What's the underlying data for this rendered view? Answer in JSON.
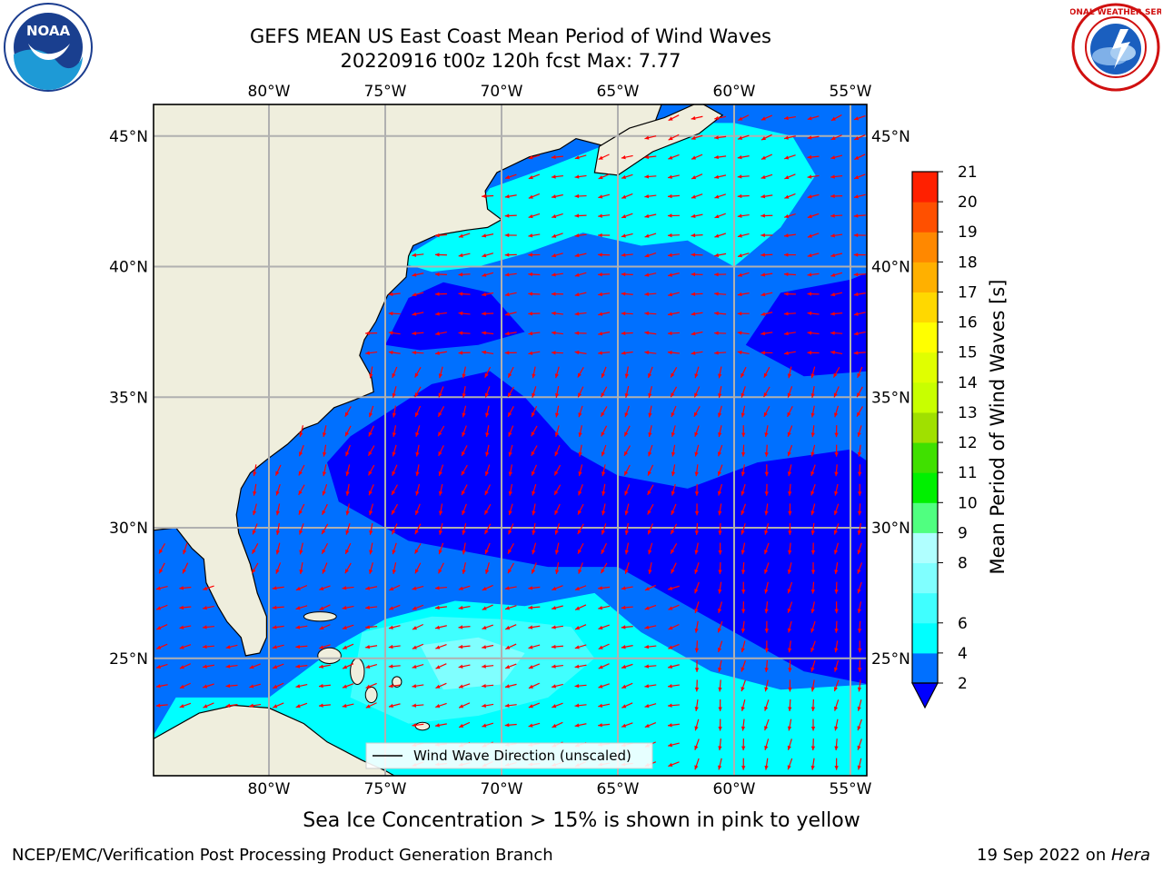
{
  "header": {
    "title_line1": "GEFS MEAN US East Coast Mean Period of Wind Waves",
    "title_line2": "20220916 t00z 120h fcst   Max: 7.77"
  },
  "logos": {
    "left": {
      "name": "NOAA",
      "text": "NOAA",
      "ring_text": "NATIONAL OCEANIC AND ATMOSPHERIC ADMINISTRATION · U.S. DEPARTMENT OF COMMERCE"
    },
    "right": {
      "name": "National Weather Service",
      "ring_text": "NATIONAL WEATHER SERVICE"
    }
  },
  "map": {
    "lon_range": [
      -85,
      -54.2
    ],
    "lat_range": [
      20.5,
      46.5
    ],
    "lon_ticks": [
      {
        "value": -80,
        "label": "80°W"
      },
      {
        "value": -75,
        "label": "75°W"
      },
      {
        "value": -70,
        "label": "70°W"
      },
      {
        "value": -65,
        "label": "65°W"
      },
      {
        "value": -60,
        "label": "60°W"
      },
      {
        "value": -55,
        "label": "55°W"
      }
    ],
    "lat_ticks": [
      {
        "value": 45,
        "label": "45°N"
      },
      {
        "value": 40,
        "label": "40°N"
      },
      {
        "value": 35,
        "label": "35°N"
      },
      {
        "value": 30,
        "label": "30°N"
      },
      {
        "value": 25,
        "label": "25°N"
      }
    ],
    "colors": {
      "land": "#efeedd",
      "coast": "#000000",
      "grid": "#b0b0b0",
      "arrow": "#ff0000"
    },
    "legend": {
      "label": "Wind Wave Direction (unscaled)"
    }
  },
  "colorbar": {
    "title": "Mean Period of Wind Waves [s]",
    "levels": [
      2,
      4,
      6,
      7,
      8,
      9,
      10,
      11,
      12,
      13,
      14,
      15,
      16,
      17,
      18,
      19,
      20,
      21
    ],
    "colors": [
      "#0070ff",
      "#00ffff",
      "#40ffff",
      "#80ffff",
      "#b0ffff",
      "#50ff80",
      "#00f000",
      "#40e000",
      "#a0e000",
      "#c8ff00",
      "#e0ff00",
      "#ffff00",
      "#ffd800",
      "#ffb000",
      "#ff8800",
      "#ff5000",
      "#ff2000"
    ],
    "under_color": "#0000ff",
    "tick_values": [
      2,
      4,
      6,
      8,
      9,
      10,
      11,
      12,
      13,
      14,
      15,
      16,
      17,
      18,
      19,
      20,
      21
    ]
  },
  "notes": {
    "ice": "Sea Ice Concentration > 15% is shown in pink to yellow"
  },
  "footer": {
    "left": "NCEP/EMC/Verification Post Processing Product Generation Branch",
    "right_prefix": "19 Sep 2022 on ",
    "right_machine": "Hera"
  }
}
